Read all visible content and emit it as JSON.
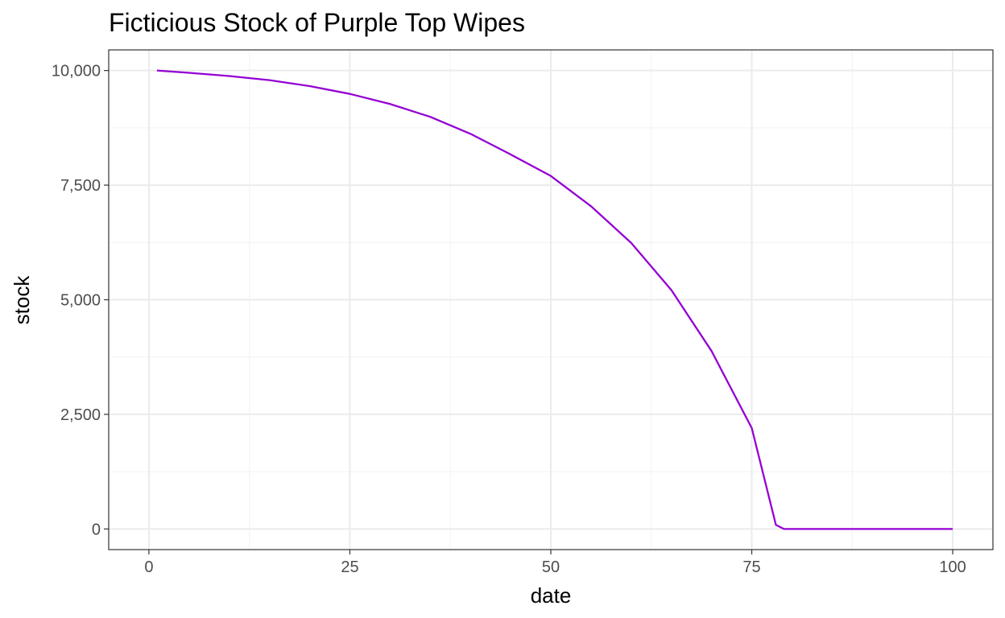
{
  "chart_data": {
    "type": "line",
    "title": "Ficticious Stock of Purple Top Wipes",
    "xlabel": "date",
    "ylabel": "stock",
    "xlim": [
      -5,
      105
    ],
    "ylim": [
      -450,
      10450
    ],
    "x_ticks": [
      0,
      25,
      50,
      75,
      100
    ],
    "x_tick_labels": [
      "0",
      "25",
      "50",
      "75",
      "100"
    ],
    "x_minor_ticks": [
      12.5,
      37.5,
      62.5,
      87.5
    ],
    "y_ticks": [
      0,
      2500,
      5000,
      7500,
      10000
    ],
    "y_tick_labels": [
      "0",
      "2,500",
      "5,000",
      "7,500",
      "10,000"
    ],
    "y_minor_ticks": [
      1250,
      3750,
      6250,
      8750
    ],
    "grid": true,
    "series": [
      {
        "color": "#9400D3",
        "x": [
          1,
          5,
          10,
          15,
          20,
          25,
          30,
          35,
          40,
          45,
          50,
          55,
          60,
          65,
          70,
          75,
          78,
          79,
          80,
          85,
          90,
          95,
          100
        ],
        "y": [
          10000,
          9950,
          9880,
          9790,
          9660,
          9490,
          9270,
          8990,
          8620,
          8170,
          7700,
          7040,
          6240,
          5210,
          3880,
          2200,
          90,
          0,
          0,
          0,
          0,
          0,
          0
        ]
      }
    ]
  }
}
